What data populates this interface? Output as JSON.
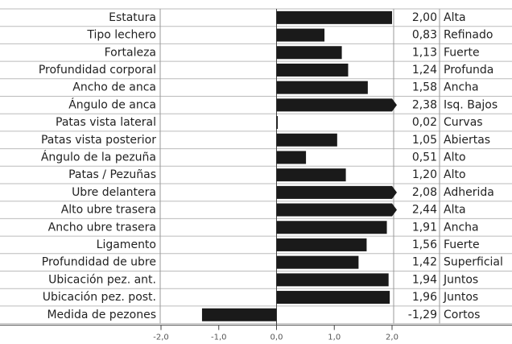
{
  "chart_data": {
    "type": "bar",
    "orientation": "horizontal",
    "categories": [
      "Estatura",
      "Tipo lechero",
      "Fortaleza",
      "Profundidad corporal",
      "Ancho de anca",
      "Ángulo de anca",
      "Patas vista lateral",
      "Patas vista posterior",
      "Ángulo de la pezuña",
      "Patas / Pezuñas",
      "Ubre delantera",
      "Alto ubre trasera",
      "Ancho ubre trasera",
      "Ligamento",
      "Profundidad de ubre",
      "Ubicación pez. ant.",
      "Ubicación pez. post.",
      "Medida de pezones"
    ],
    "values": [
      2.0,
      0.83,
      1.13,
      1.24,
      1.58,
      2.38,
      0.02,
      1.05,
      0.51,
      1.2,
      2.08,
      2.44,
      1.91,
      1.56,
      1.42,
      1.94,
      1.96,
      -1.29
    ],
    "value_labels": [
      "2,00",
      "0,83",
      "1,13",
      "1,24",
      "1,58",
      "2,38",
      "0,02",
      "1,05",
      "0,51",
      "1,20",
      "2,08",
      "2,44",
      "1,91",
      "1,56",
      "1,42",
      "1,94",
      "1,96",
      "-1,29"
    ],
    "descriptors": [
      "Alta",
      "Refinado",
      "Fuerte",
      "Profunda",
      "Ancha",
      "Isq. Bajos",
      "Curvas",
      "Abiertas",
      "Alto",
      "Alto",
      "Adherida",
      "Alta",
      "Ancha",
      "Fuerte",
      "Superficial",
      "Juntos",
      "Juntos",
      "Cortos"
    ],
    "color": "#1a1a1a",
    "xlim": [
      -2,
      2
    ],
    "xticks": [
      {
        "value": -2,
        "label": "-2,0"
      },
      {
        "value": -1,
        "label": "-1,0"
      },
      {
        "value": 0,
        "label": "0,0"
      },
      {
        "value": 1,
        "label": "1,0"
      },
      {
        "value": 2,
        "label": "2,0"
      }
    ]
  }
}
